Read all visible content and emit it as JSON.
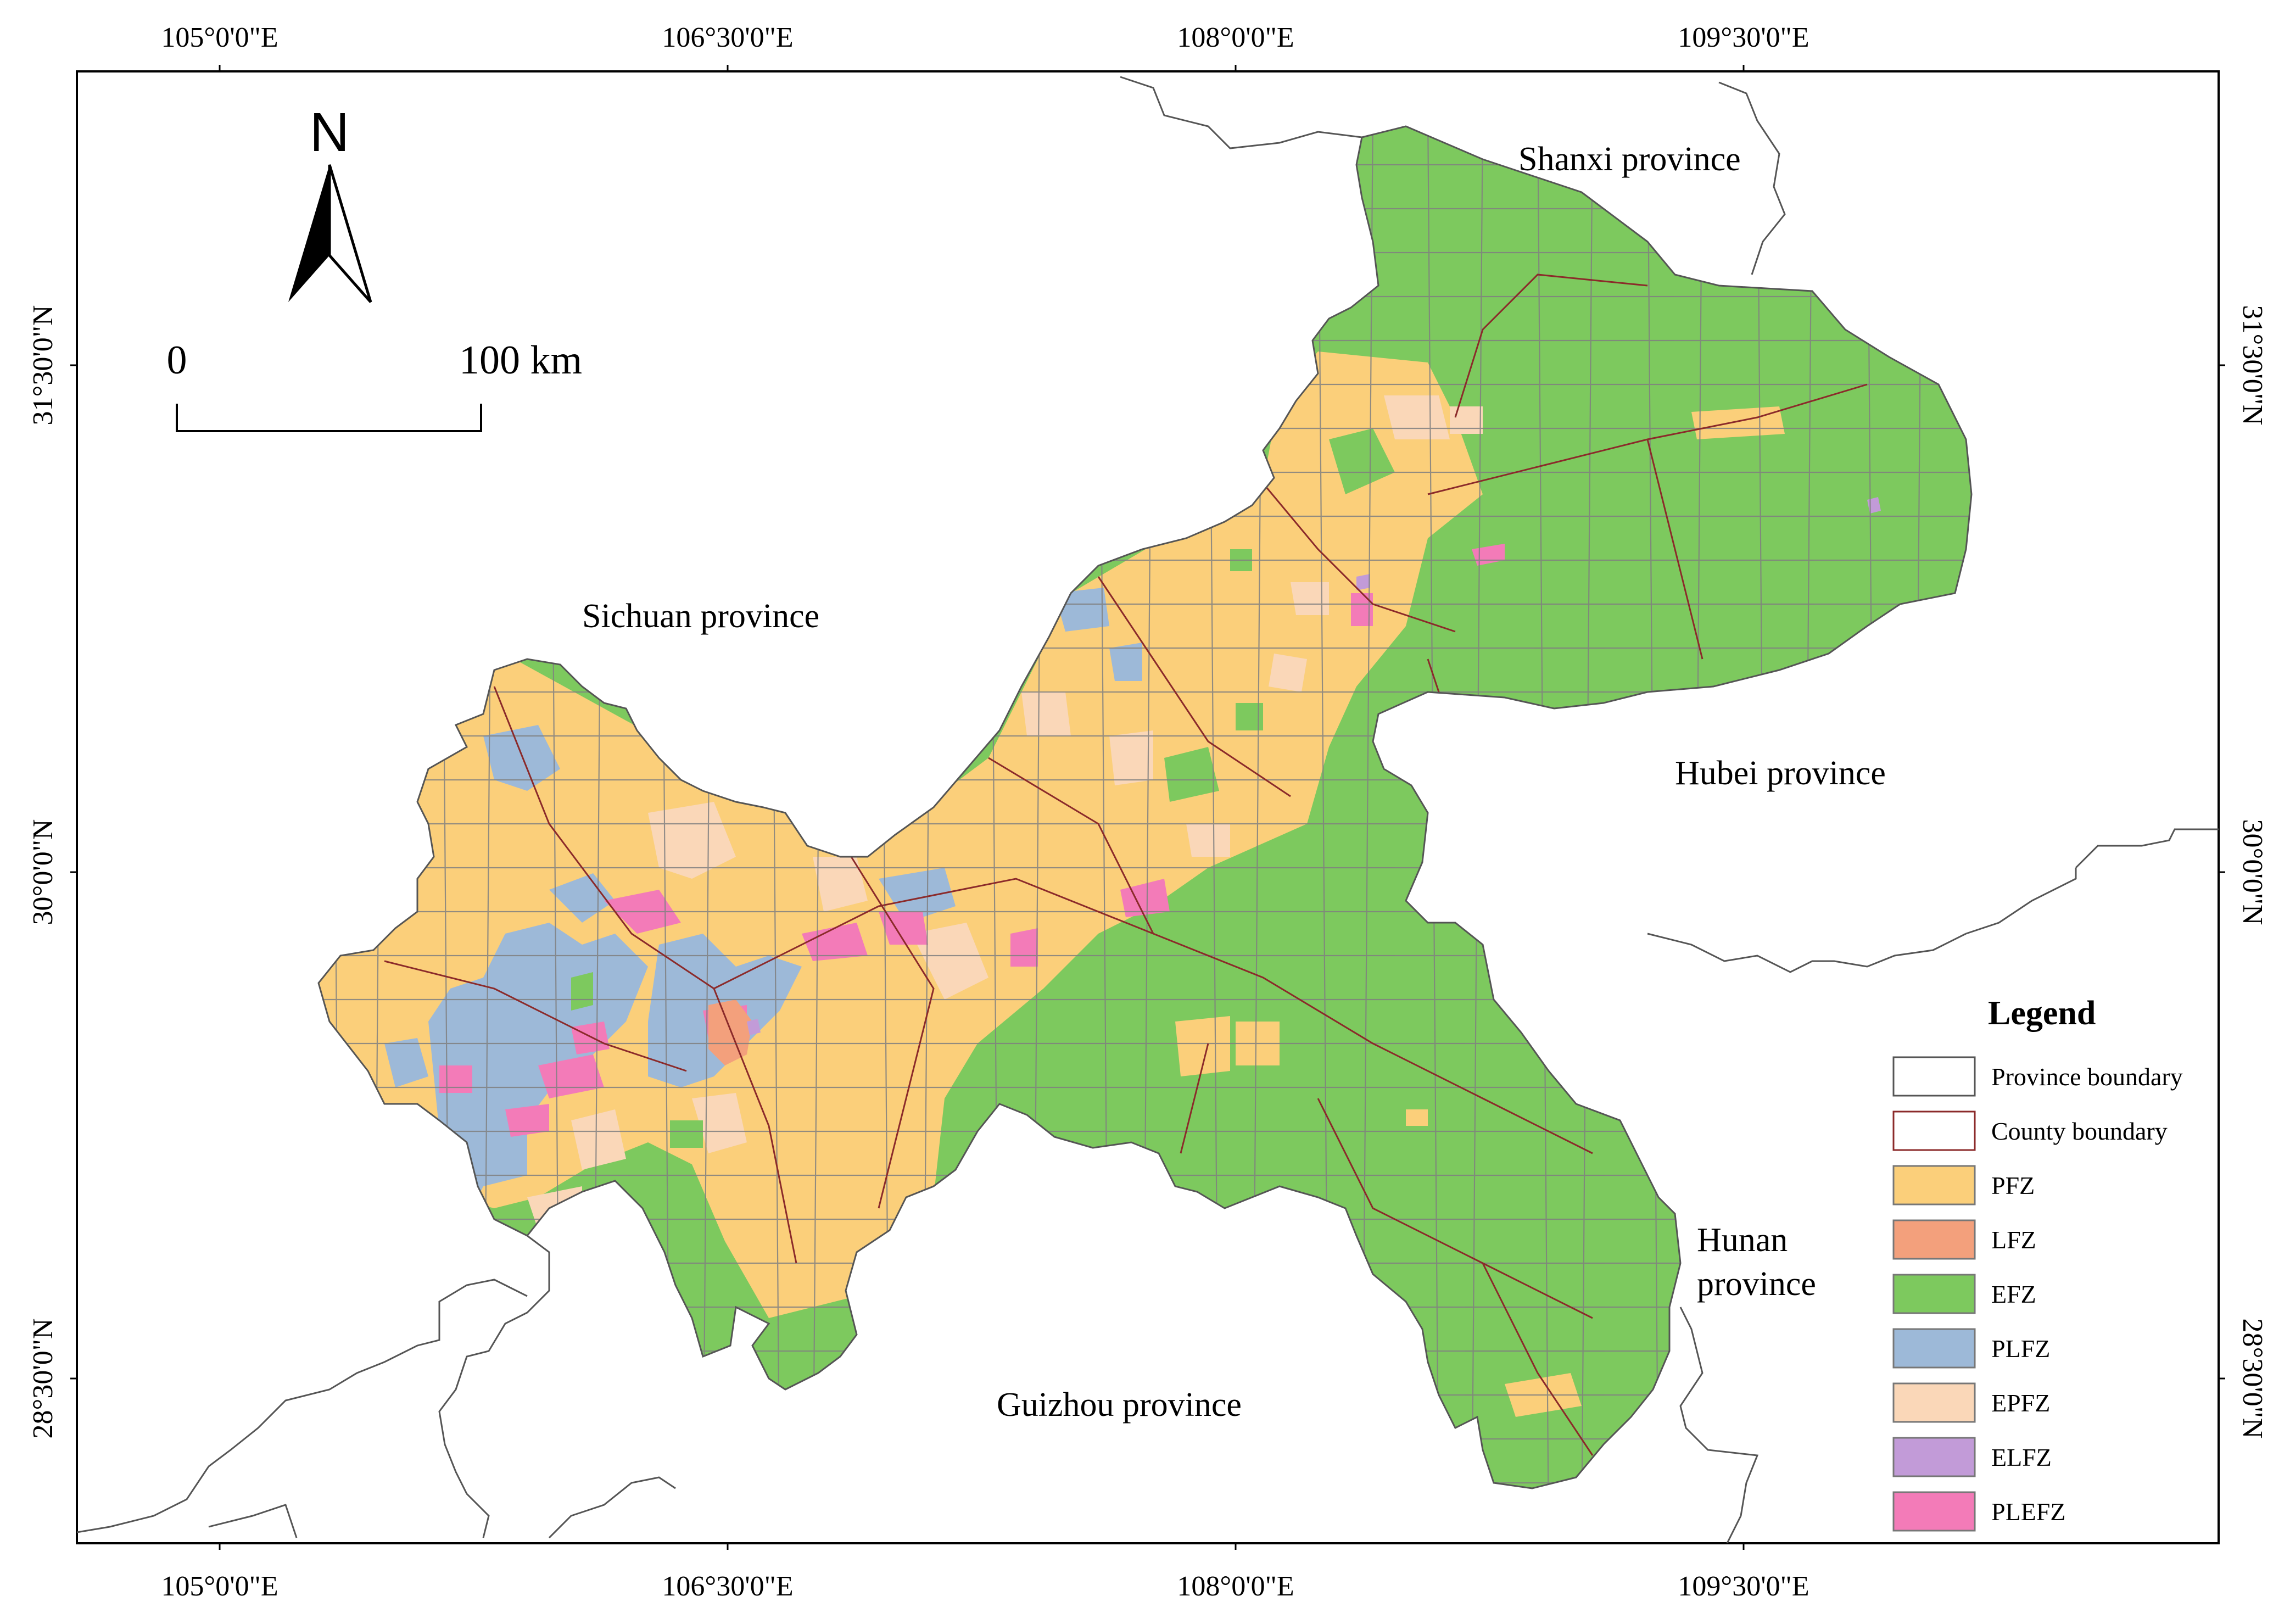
{
  "axes": {
    "top_ticks": [
      "105°0'0\"E",
      "106°30'0\"E",
      "108°0'0\"E",
      "109°30'0\"E"
    ],
    "bottom_ticks": [
      "105°0'0\"E",
      "106°30'0\"E",
      "108°0'0\"E",
      "109°30'0\"E"
    ],
    "left_ticks": [
      "31°30'0\"N",
      "30°0'0\"N",
      "28°30'0\"N"
    ],
    "right_ticks": [
      "31°30'0\"N",
      "30°0'0\"N",
      "28°30'0\"N"
    ]
  },
  "north_arrow": {
    "label": "N"
  },
  "scale_bar": {
    "start_label": "0",
    "end_label": "100 km"
  },
  "regions": {
    "shanxi": "Shanxi province",
    "sichuan": "Sichuan province",
    "hubei": "Hubei province",
    "hunan_line1": "Hunan",
    "hunan_line2": "province",
    "guizhou": "Guizhou province"
  },
  "legend": {
    "title": "Legend",
    "items": [
      {
        "label": "Province boundary",
        "color": "#ffffff",
        "stroke": "#555555"
      },
      {
        "label": "County boundary",
        "color": "#ffffff",
        "stroke": "#8b2a2a"
      },
      {
        "label": "PFZ",
        "color": "#fbcf7a"
      },
      {
        "label": "LFZ",
        "color": "#f3a07c"
      },
      {
        "label": "EFZ",
        "color": "#7dc95e"
      },
      {
        "label": "PLFZ",
        "color": "#9db9d8"
      },
      {
        "label": "EPFZ",
        "color": "#fad7b8"
      },
      {
        "label": "ELFZ",
        "color": "#c29bd8"
      },
      {
        "label": "PLEFZ",
        "color": "#f37bb8"
      }
    ]
  },
  "colors": {
    "PFZ": "#fbcf7a",
    "LFZ": "#f3a07c",
    "EFZ": "#7dc95e",
    "PLFZ": "#9db9d8",
    "EPFZ": "#fad7b8",
    "ELFZ": "#c29bd8",
    "PLEFZ": "#f37bb8"
  }
}
